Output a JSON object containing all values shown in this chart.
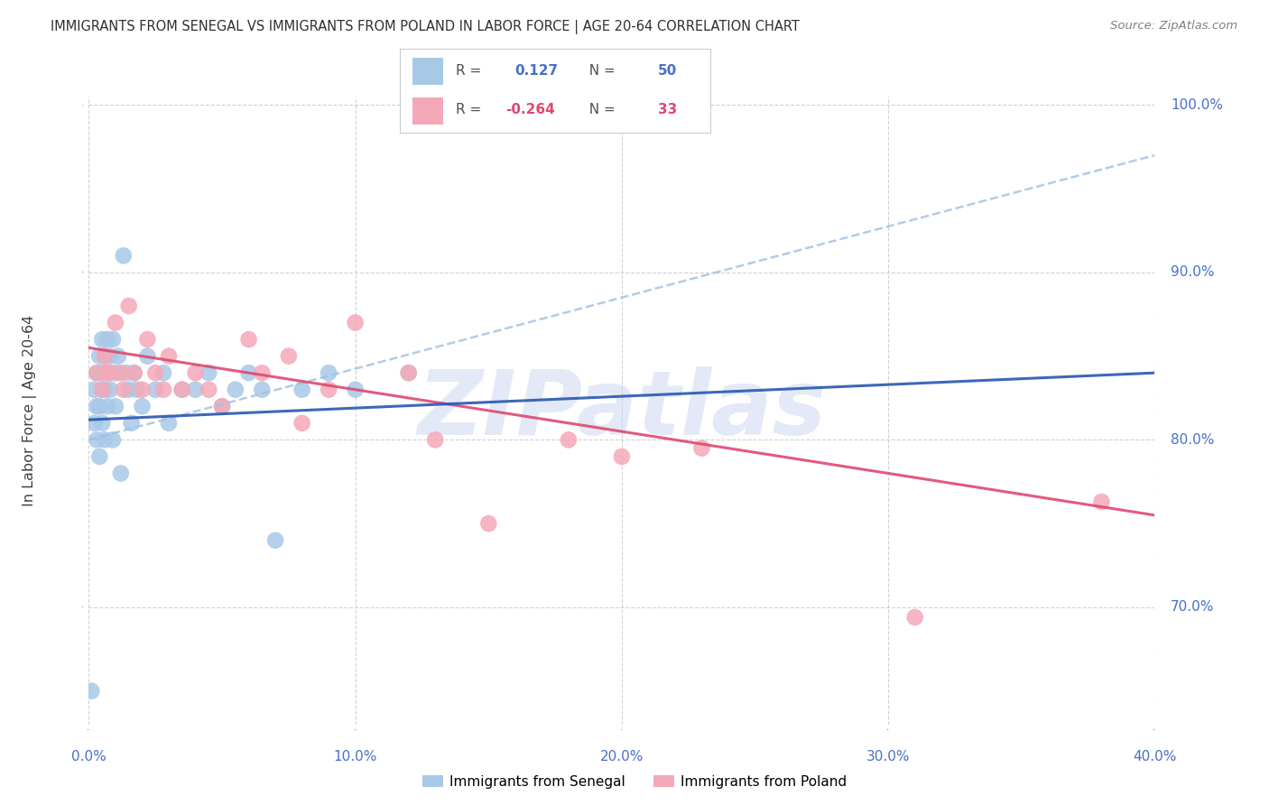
{
  "title": "IMMIGRANTS FROM SENEGAL VS IMMIGRANTS FROM POLAND IN LABOR FORCE | AGE 20-64 CORRELATION CHART",
  "source": "Source: ZipAtlas.com",
  "ylabel": "In Labor Force | Age 20-64",
  "xlim": [
    0.0,
    0.4
  ],
  "ylim": [
    0.63,
    1.005
  ],
  "xticks": [
    0.0,
    0.1,
    0.2,
    0.3,
    0.4
  ],
  "yticks": [
    0.7,
    0.8,
    0.9,
    1.0
  ],
  "ytick_labels": [
    "70.0%",
    "80.0%",
    "90.0%",
    "100.0%"
  ],
  "xtick_labels": [
    "0.0%",
    "10.0%",
    "20.0%",
    "30.0%",
    "40.0%"
  ],
  "senegal_R": 0.127,
  "senegal_N": 50,
  "poland_R": -0.264,
  "poland_N": 33,
  "senegal_color": "#a8c8e8",
  "poland_color": "#f4a8b8",
  "senegal_dashed_color": "#a0c0e0",
  "poland_line_color": "#e04870",
  "senegal_solid_color": "#2858b0",
  "grid_color": "#cccccc",
  "background_color": "#ffffff",
  "title_color": "#303030",
  "axis_label_color": "#404040",
  "tick_color": "#4870c8",
  "watermark_color": "#ccd8f0",
  "legend_border_color": "#cccccc",
  "senegal_x": [
    0.001,
    0.002,
    0.002,
    0.003,
    0.003,
    0.003,
    0.004,
    0.004,
    0.004,
    0.005,
    0.005,
    0.005,
    0.005,
    0.006,
    0.006,
    0.006,
    0.007,
    0.007,
    0.007,
    0.008,
    0.008,
    0.009,
    0.009,
    0.01,
    0.01,
    0.011,
    0.012,
    0.013,
    0.014,
    0.015,
    0.016,
    0.017,
    0.018,
    0.02,
    0.022,
    0.025,
    0.028,
    0.03,
    0.035,
    0.04,
    0.045,
    0.05,
    0.055,
    0.06,
    0.065,
    0.07,
    0.08,
    0.09,
    0.1,
    0.12
  ],
  "senegal_y": [
    0.65,
    0.83,
    0.81,
    0.84,
    0.82,
    0.8,
    0.85,
    0.82,
    0.79,
    0.86,
    0.84,
    0.83,
    0.81,
    0.85,
    0.83,
    0.8,
    0.86,
    0.84,
    0.82,
    0.85,
    0.83,
    0.86,
    0.8,
    0.84,
    0.82,
    0.85,
    0.78,
    0.91,
    0.84,
    0.83,
    0.81,
    0.84,
    0.83,
    0.82,
    0.85,
    0.83,
    0.84,
    0.81,
    0.83,
    0.83,
    0.84,
    0.82,
    0.83,
    0.84,
    0.83,
    0.74,
    0.83,
    0.84,
    0.83,
    0.84
  ],
  "poland_x": [
    0.003,
    0.005,
    0.006,
    0.007,
    0.008,
    0.01,
    0.012,
    0.013,
    0.015,
    0.017,
    0.02,
    0.022,
    0.025,
    0.028,
    0.03,
    0.035,
    0.04,
    0.045,
    0.05,
    0.06,
    0.065,
    0.075,
    0.08,
    0.09,
    0.1,
    0.12,
    0.13,
    0.15,
    0.18,
    0.2,
    0.23,
    0.31,
    0.38
  ],
  "poland_y": [
    0.84,
    0.83,
    0.85,
    0.84,
    0.84,
    0.87,
    0.84,
    0.83,
    0.88,
    0.84,
    0.83,
    0.86,
    0.84,
    0.83,
    0.85,
    0.83,
    0.84,
    0.83,
    0.82,
    0.86,
    0.84,
    0.85,
    0.81,
    0.83,
    0.87,
    0.84,
    0.8,
    0.75,
    0.8,
    0.79,
    0.795,
    0.694,
    0.763
  ]
}
